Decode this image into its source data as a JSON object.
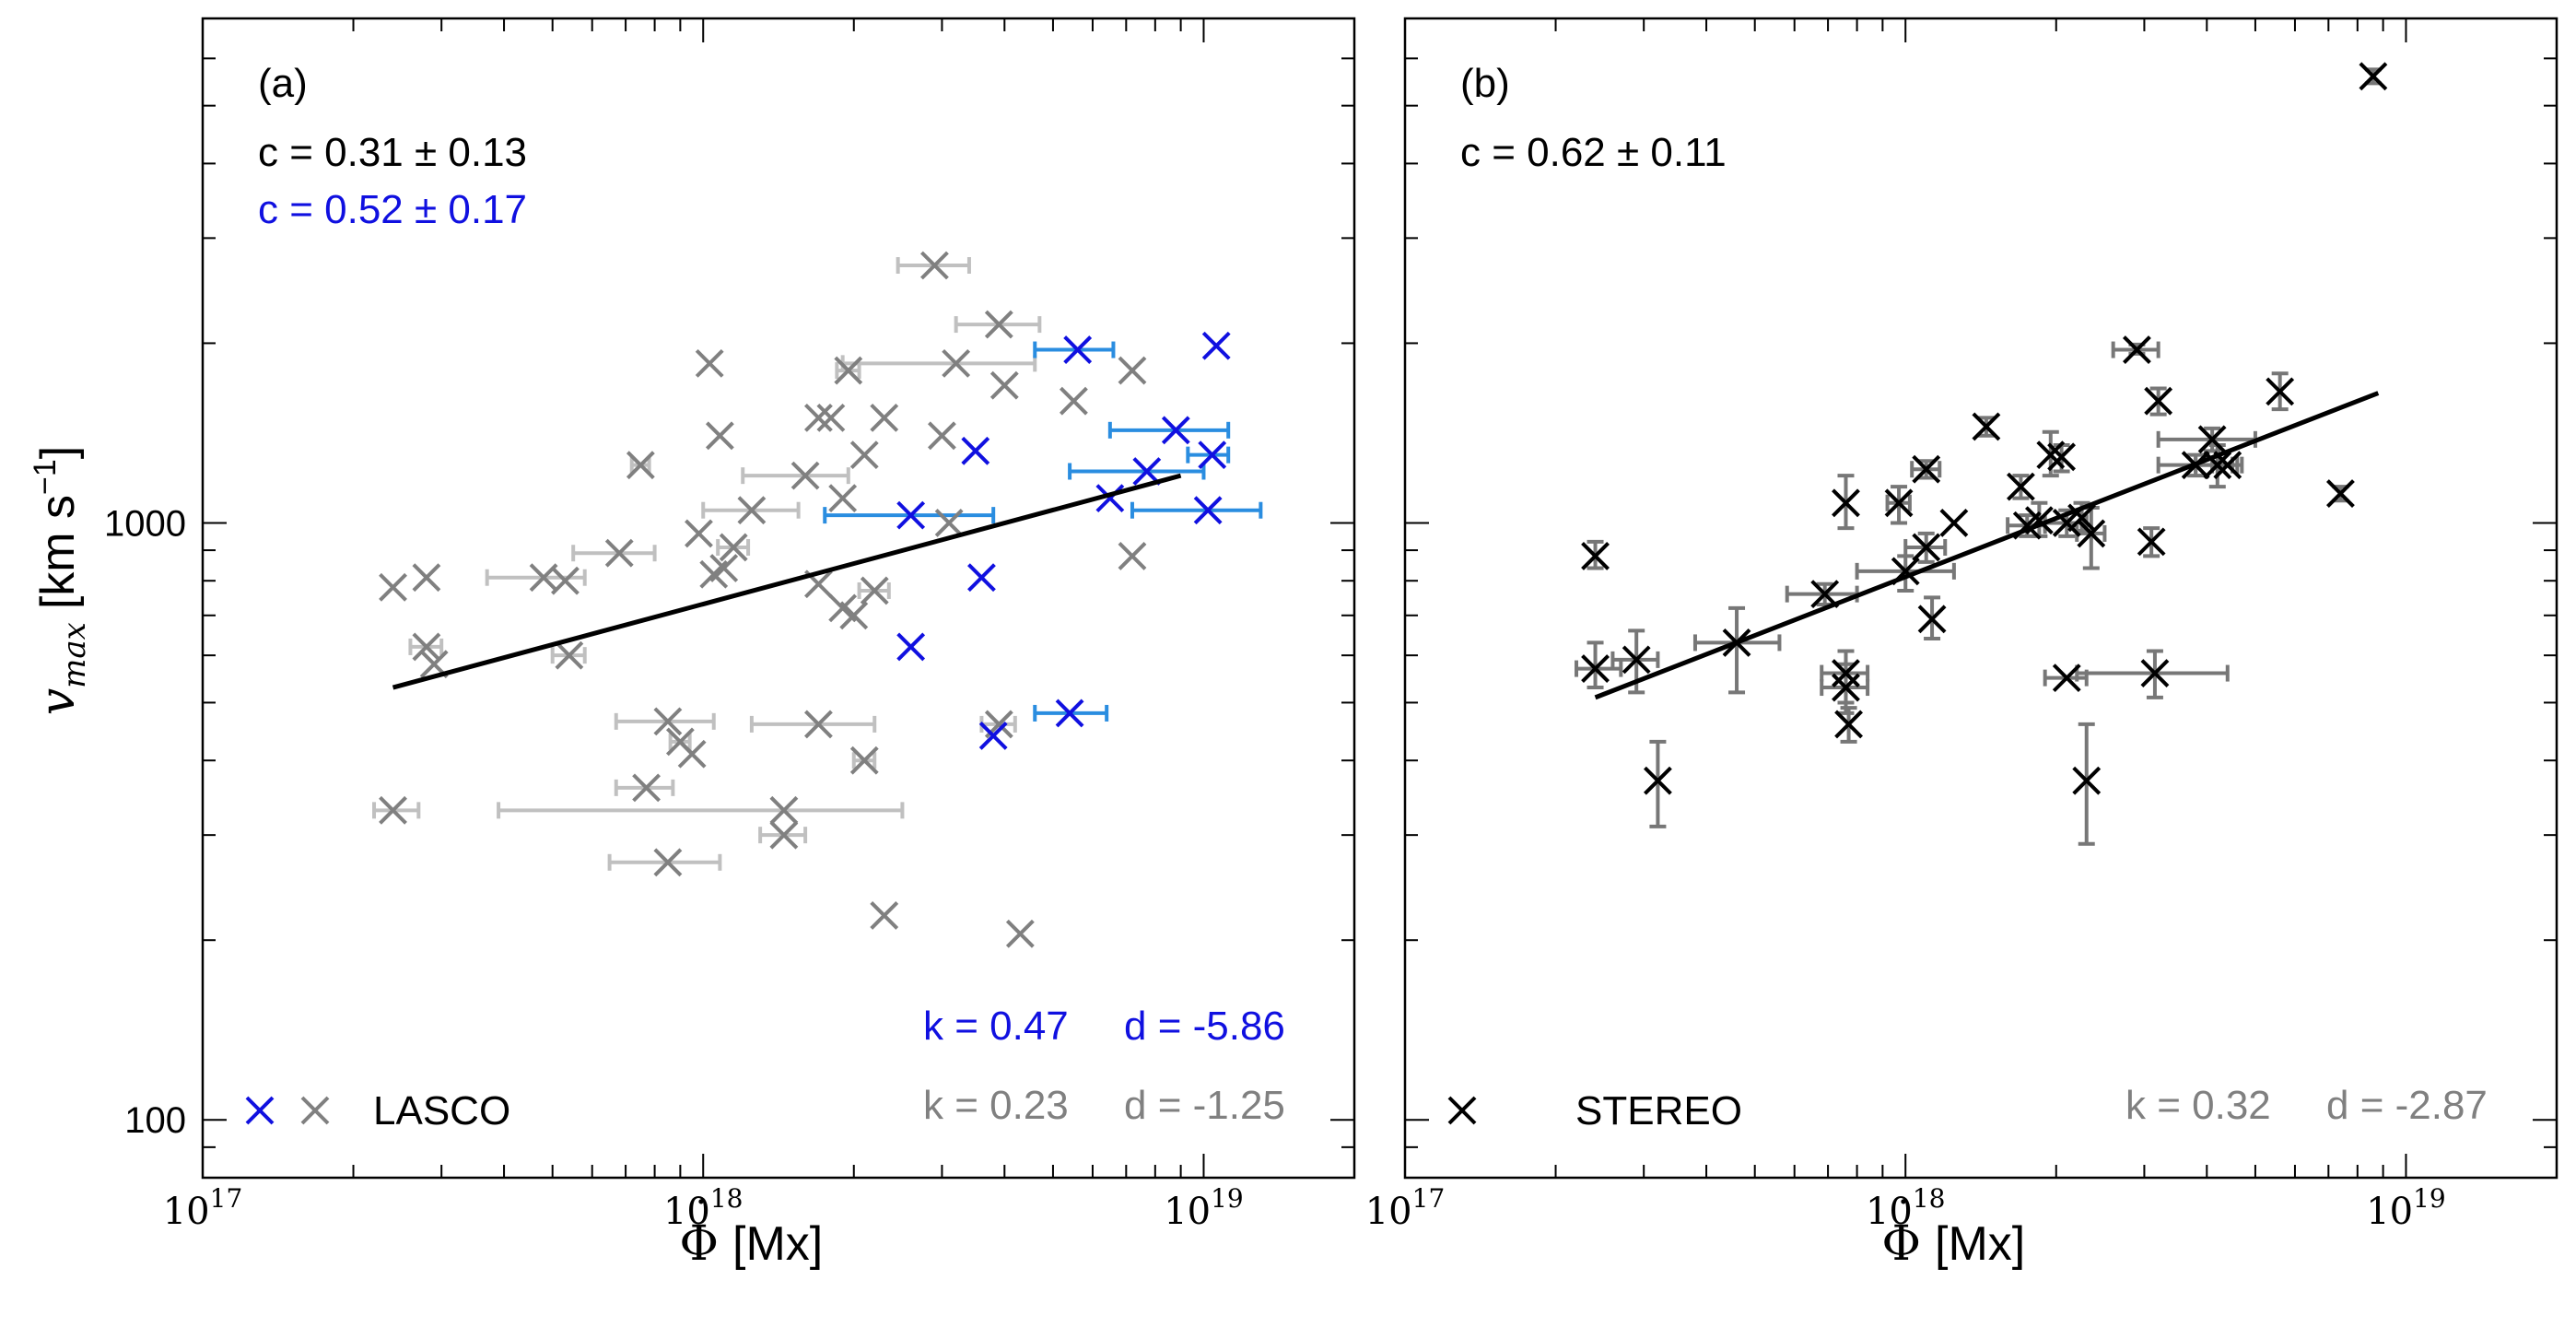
{
  "figure": {
    "ylabel_symbol": "v",
    "ylabel_subscript": "max",
    "ylabel_unit": "[km s",
    "ylabel_unit_exp": "−1",
    "ylabel_unit_close": "]",
    "xlabel_symbol": "Φ",
    "xlabel_unit": "[Mx]"
  },
  "colors": {
    "blue_marker": "#1010e0",
    "blue_errorbar": "#2a8de0",
    "gray_marker": "#808080",
    "gray_errorbar": "#c0c0c0",
    "black": "#000000",
    "stereo_errorbar": "#777777",
    "fit_text_gray": "#808080",
    "c_text_blue": "#1010e0"
  },
  "chart_data": [
    {
      "type": "scatter",
      "panel": "(a)",
      "xscale": "log",
      "yscale": "log",
      "xlim": [
        1e+17,
        2e+19
      ],
      "ylim": [
        80,
        7000
      ],
      "x_ticks": [
        {
          "value": 1e+17,
          "base": "10",
          "exp": "17"
        },
        {
          "value": 1e+18,
          "base": "10",
          "exp": "18"
        },
        {
          "value": 1e+19,
          "base": "10",
          "exp": "19"
        }
      ],
      "y_ticks": [
        {
          "value": 100,
          "label": "100"
        },
        {
          "value": 1000,
          "label": "1000"
        }
      ],
      "corr_lines": [
        {
          "text": "c = 0.31 ± 0.13",
          "color": "#000000"
        },
        {
          "text": "c = 0.52 ± 0.17",
          "color": "#1010e0"
        }
      ],
      "fit_lines": [
        {
          "k_text": "k = 0.47",
          "d_text": "d = -5.86",
          "color": "#1010e0"
        },
        {
          "k_text": "k = 0.23",
          "d_text": "d = -1.25",
          "color": "#808080"
        }
      ],
      "legend": {
        "label": "LASCO",
        "markers": [
          "#1010e0",
          "#808080"
        ],
        "position": "bottom-left"
      },
      "fit_line": {
        "x": [
          2.4e+17,
          9e+18
        ],
        "y": [
          530,
          1200
        ],
        "color": "#000000"
      },
      "series": [
        {
          "name": "LASCO (gray)",
          "marker_color": "#808080",
          "errorbar_color": "#c0c0c0",
          "points": [
            {
              "x": 2.4e+17,
              "y": 780
            },
            {
              "x": 2.4e+17,
              "y": 330,
              "xerr": [
                2.2e+17,
                2.7e+17
              ]
            },
            {
              "x": 2.8e+17,
              "y": 620,
              "xerr": [
                2.6e+17,
                3e+17
              ]
            },
            {
              "x": 2.8e+17,
              "y": 810
            },
            {
              "x": 2.9e+17,
              "y": 580
            },
            {
              "x": 4.8e+17,
              "y": 810,
              "xerr": [
                3.7e+17,
                5.8e+17
              ]
            },
            {
              "x": 5.3e+17,
              "y": 800
            },
            {
              "x": 5.4e+17,
              "y": 600,
              "xerr": [
                5e+17,
                5.8e+17
              ]
            },
            {
              "x": 6.8e+17,
              "y": 890,
              "xerr": [
                5.5e+17,
                8e+17
              ]
            },
            {
              "x": 7.5e+17,
              "y": 1250,
              "xerr": [
                7.2e+17,
                7.8e+17
              ]
            },
            {
              "x": 7.7e+17,
              "y": 360,
              "xerr": [
                6.7e+17,
                8.7e+17
              ]
            },
            {
              "x": 8.5e+17,
              "y": 465,
              "xerr": [
                6.7e+17,
                1.05e+18
              ]
            },
            {
              "x": 8.5e+17,
              "y": 270,
              "xerr": [
                6.5e+17,
                1.08e+18
              ]
            },
            {
              "x": 9e+17,
              "y": 430,
              "xerr": [
                8.6e+17,
                9.4e+17
              ]
            },
            {
              "x": 9.5e+17,
              "y": 410
            },
            {
              "x": 9.8e+17,
              "y": 960
            },
            {
              "x": 1.03e+18,
              "y": 1850
            },
            {
              "x": 1.05e+18,
              "y": 820
            },
            {
              "x": 1.08e+18,
              "y": 1400
            },
            {
              "x": 1.1e+18,
              "y": 840
            },
            {
              "x": 1.15e+18,
              "y": 910,
              "xerr": [
                1.07e+18,
                1.23e+18
              ]
            },
            {
              "x": 1.25e+18,
              "y": 1050,
              "xerr": [
                1e+18,
                1.55e+18
              ]
            },
            {
              "x": 1.45e+18,
              "y": 330,
              "xerr": [
                3.9e+17,
                2.5e+18
              ]
            },
            {
              "x": 1.45e+18,
              "y": 300,
              "xerr": [
                1.3e+18,
                1.6e+18
              ]
            },
            {
              "x": 1.6e+18,
              "y": 1200,
              "xerr": [
                1.2e+18,
                1.95e+18
              ]
            },
            {
              "x": 1.7e+18,
              "y": 1500
            },
            {
              "x": 1.7e+18,
              "y": 460,
              "xerr": [
                1.25e+18,
                2.2e+18
              ]
            },
            {
              "x": 1.7e+18,
              "y": 790
            },
            {
              "x": 1.8e+18,
              "y": 1500
            },
            {
              "x": 1.9e+18,
              "y": 1100
            },
            {
              "x": 1.9e+18,
              "y": 720
            },
            {
              "x": 1.95e+18,
              "y": 1800,
              "xerr": [
                1.85e+18,
                2.05e+18
              ]
            },
            {
              "x": 2e+18,
              "y": 700
            },
            {
              "x": 2.1e+18,
              "y": 400,
              "xerr": [
                2e+18,
                2.2e+18
              ]
            },
            {
              "x": 2.1e+18,
              "y": 1300
            },
            {
              "x": 2.2e+18,
              "y": 770,
              "xerr": [
                2.05e+18,
                2.35e+18
              ]
            },
            {
              "x": 2.3e+18,
              "y": 1500
            },
            {
              "x": 2.3e+18,
              "y": 220
            },
            {
              "x": 2.9e+18,
              "y": 2700,
              "xerr": [
                2.45e+18,
                3.4e+18
              ]
            },
            {
              "x": 3e+18,
              "y": 1400
            },
            {
              "x": 3.1e+18,
              "y": 1000
            },
            {
              "x": 3.2e+18,
              "y": 1850,
              "xerr": [
                1.9e+18,
                4.6e+18
              ]
            },
            {
              "x": 3.9e+18,
              "y": 2150,
              "xerr": [
                3.2e+18,
                4.7e+18
              ]
            },
            {
              "x": 3.9e+18,
              "y": 460,
              "xerr": [
                3.6e+18,
                4.2e+18
              ]
            },
            {
              "x": 4e+18,
              "y": 1700
            },
            {
              "x": 4.3e+18,
              "y": 205
            },
            {
              "x": 5.5e+18,
              "y": 1600
            },
            {
              "x": 7.2e+18,
              "y": 880
            },
            {
              "x": 7.2e+18,
              "y": 1800
            }
          ]
        },
        {
          "name": "LASCO (blue)",
          "marker_color": "#1010e0",
          "errorbar_color": "#2a8de0",
          "points": [
            {
              "x": 2.6e+18,
              "y": 1030,
              "xerr": [
                1.75e+18,
                3.8e+18
              ]
            },
            {
              "x": 2.6e+18,
              "y": 620
            },
            {
              "x": 3.5e+18,
              "y": 1320
            },
            {
              "x": 3.6e+18,
              "y": 810
            },
            {
              "x": 3.8e+18,
              "y": 440
            },
            {
              "x": 5.4e+18,
              "y": 480,
              "xerr": [
                4.6e+18,
                6.4e+18
              ]
            },
            {
              "x": 5.6e+18,
              "y": 1950,
              "xerr": [
                4.6e+18,
                6.6e+18
              ]
            },
            {
              "x": 6.5e+18,
              "y": 1100
            },
            {
              "x": 7.7e+18,
              "y": 1220,
              "xerr": [
                5.4e+18,
                1e+19
              ]
            },
            {
              "x": 8.8e+18,
              "y": 1430,
              "xerr": [
                6.5e+18,
                1.12e+19
              ]
            },
            {
              "x": 1.02e+19,
              "y": 1050,
              "xerr": [
                7.2e+18,
                1.3e+19
              ]
            },
            {
              "x": 1.04e+19,
              "y": 1300,
              "xerr": [
                9.3e+18,
                1.12e+19
              ]
            },
            {
              "x": 1.06e+19,
              "y": 1980
            }
          ]
        }
      ]
    },
    {
      "type": "scatter",
      "panel": "(b)",
      "xscale": "log",
      "yscale": "log",
      "xlim": [
        1e+17,
        2e+19
      ],
      "ylim": [
        80,
        7000
      ],
      "x_ticks": [
        {
          "value": 1e+17,
          "base": "10",
          "exp": "17"
        },
        {
          "value": 1e+18,
          "base": "10",
          "exp": "18"
        },
        {
          "value": 1e+19,
          "base": "10",
          "exp": "19"
        }
      ],
      "y_ticks": [],
      "corr_lines": [
        {
          "text": "c = 0.62 ± 0.11",
          "color": "#000000"
        }
      ],
      "fit_lines": [
        {
          "k_text": "k = 0.32",
          "d_text": "d = -2.87",
          "color": "#808080"
        }
      ],
      "legend": {
        "label": "STEREO",
        "markers": [
          "#000000"
        ],
        "position": "bottom-left"
      },
      "fit_line": {
        "x": [
          2.4e+17,
          8.8e+18
        ],
        "y": [
          510,
          1650
        ],
        "color": "#000000"
      },
      "series": [
        {
          "name": "STEREO",
          "marker_color": "#000000",
          "errorbar_color": "#777777",
          "points": [
            {
              "x": 2.4e+17,
              "y": 880,
              "yerr": [
                840,
                930
              ]
            },
            {
              "x": 2.4e+17,
              "y": 570,
              "xerr": [
                2.2e+17,
                2.7e+17
              ],
              "yerr": [
                530,
                630
              ]
            },
            {
              "x": 2.9e+17,
              "y": 590,
              "xerr": [
                2.6e+17,
                3.2e+17
              ],
              "yerr": [
                520,
                660
              ]
            },
            {
              "x": 3.2e+17,
              "y": 370,
              "yerr": [
                310,
                430
              ]
            },
            {
              "x": 4.6e+17,
              "y": 630,
              "xerr": [
                3.8e+17,
                5.6e+17
              ],
              "yerr": [
                520,
                720
              ]
            },
            {
              "x": 6.9e+17,
              "y": 760,
              "xerr": [
                5.8e+17,
                8e+17
              ],
              "yerr": [
                730,
                790
              ]
            },
            {
              "x": 7.6e+17,
              "y": 1080,
              "yerr": [
                980,
                1200
              ]
            },
            {
              "x": 7.6e+17,
              "y": 560,
              "xerr": [
                6.8e+17,
                8.4e+17
              ],
              "yerr": [
                500,
                610
              ]
            },
            {
              "x": 7.6e+17,
              "y": 530,
              "xerr": [
                6.8e+17,
                8.4e+17
              ],
              "yerr": [
                480,
                580
              ]
            },
            {
              "x": 7.7e+17,
              "y": 460,
              "yerr": [
                430,
                490
              ]
            },
            {
              "x": 9.7e+17,
              "y": 1080,
              "xerr": [
                9.2e+17,
                1.02e+18
              ],
              "yerr": [
                1000,
                1150
              ]
            },
            {
              "x": 1e+18,
              "y": 830,
              "xerr": [
                8e+17,
                1.25e+18
              ],
              "yerr": [
                770,
                880
              ]
            },
            {
              "x": 1.1e+18,
              "y": 1230,
              "xerr": [
                1.03e+18,
                1.17e+18
              ],
              "yerr": [
                1190,
                1270
              ]
            },
            {
              "x": 1.1e+18,
              "y": 910,
              "xerr": [
                1e+18,
                1.2e+18
              ],
              "yerr": [
                860,
                960
              ]
            },
            {
              "x": 1.13e+18,
              "y": 690,
              "yerr": [
                640,
                750
              ]
            },
            {
              "x": 1.25e+18,
              "y": 1000
            },
            {
              "x": 1.45e+18,
              "y": 1450,
              "yerr": [
                1400,
                1500
              ]
            },
            {
              "x": 1.7e+18,
              "y": 1150,
              "yerr": [
                1100,
                1200
              ]
            },
            {
              "x": 1.75e+18,
              "y": 990,
              "xerr": [
                1.6e+18,
                1.9e+18
              ],
              "yerr": [
                950,
                1030
              ]
            },
            {
              "x": 1.85e+18,
              "y": 1010,
              "yerr": [
                950,
                1080
              ]
            },
            {
              "x": 1.95e+18,
              "y": 1300,
              "yerr": [
                1200,
                1420
              ]
            },
            {
              "x": 2.05e+18,
              "y": 1290,
              "yerr": [
                1220,
                1350
              ]
            },
            {
              "x": 2.1e+18,
              "y": 1000,
              "xerr": [
                1.9e+18,
                2.3e+18
              ],
              "yerr": [
                950,
                1050
              ]
            },
            {
              "x": 2.1e+18,
              "y": 550,
              "xerr": [
                1.9e+18,
                2.3e+18
              ]
            },
            {
              "x": 2.25e+18,
              "y": 1020,
              "yerr": [
                970,
                1080
              ]
            },
            {
              "x": 2.3e+18,
              "y": 370,
              "yerr": [
                290,
                460
              ]
            },
            {
              "x": 2.35e+18,
              "y": 960,
              "xerr": [
                2.2e+18,
                2.5e+18
              ],
              "yerr": [
                840,
                1060
              ]
            },
            {
              "x": 2.9e+18,
              "y": 1950,
              "xerr": [
                2.6e+18,
                3.2e+18
              ],
              "yerr": [
                1920,
                1990
              ]
            },
            {
              "x": 3.1e+18,
              "y": 930,
              "yerr": [
                880,
                980
              ]
            },
            {
              "x": 3.15e+18,
              "y": 560,
              "xerr": [
                2.2e+18,
                4.4e+18
              ],
              "yerr": [
                510,
                610
              ]
            },
            {
              "x": 3.2e+18,
              "y": 1600,
              "yerr": [
                1520,
                1680
              ]
            },
            {
              "x": 3.8e+18,
              "y": 1250,
              "xerr": [
                3.2e+18,
                4.5e+18
              ],
              "yerr": [
                1200,
                1300
              ]
            },
            {
              "x": 4.1e+18,
              "y": 1380,
              "xerr": [
                3.2e+18,
                5e+18
              ],
              "yerr": [
                1320,
                1440
              ]
            },
            {
              "x": 4.2e+18,
              "y": 1250,
              "xerr": [
                3.8e+18,
                4.6e+18
              ],
              "yerr": [
                1150,
                1350
              ]
            },
            {
              "x": 4.4e+18,
              "y": 1250,
              "xerr": [
                4.1e+18,
                4.7e+18
              ]
            },
            {
              "x": 5.6e+18,
              "y": 1660,
              "yerr": [
                1550,
                1780
              ]
            },
            {
              "x": 7.4e+18,
              "y": 1120,
              "yerr": [
                1090,
                1150
              ]
            },
            {
              "x": 8.6e+18,
              "y": 5600,
              "yerr": [
                5450,
                5750
              ]
            }
          ]
        }
      ]
    }
  ]
}
